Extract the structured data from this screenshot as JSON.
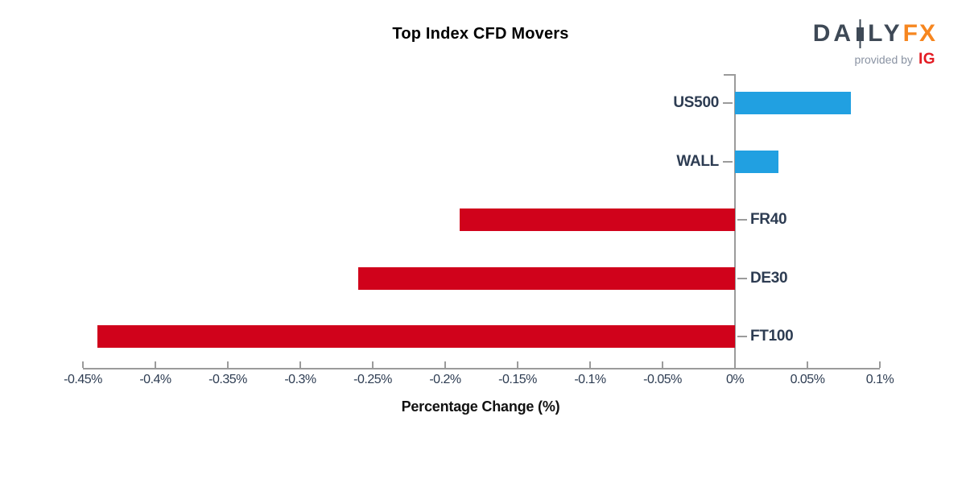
{
  "title": "Top Index CFD Movers",
  "logo": {
    "brand_daily_left": "DA",
    "brand_daily_right": "LY",
    "brand_fx": "FX",
    "provided_by": "provided by",
    "provider": "IG"
  },
  "chart_data": {
    "type": "bar",
    "orientation": "horizontal",
    "title": "Top Index CFD Movers",
    "xlabel": "Percentage Change (%)",
    "categories": [
      "US500",
      "WALL",
      "FR40",
      "DE30",
      "FT100"
    ],
    "values": [
      0.08,
      0.03,
      -0.19,
      -0.26,
      -0.44
    ],
    "unit": "%",
    "xlim": [
      -0.45,
      0.1
    ],
    "xticks": [
      -0.45,
      -0.4,
      -0.35,
      -0.3,
      -0.25,
      -0.2,
      -0.15,
      -0.1,
      -0.05,
      0,
      0.05,
      0.1
    ],
    "xtick_labels": [
      "-0.45%",
      "-0.4%",
      "-0.35%",
      "-0.3%",
      "-0.25%",
      "-0.2%",
      "-0.15%",
      "-0.1%",
      "-0.05%",
      "0%",
      "0.05%",
      "0.1%"
    ],
    "grid": false,
    "legend": false,
    "colors": {
      "positive": "#21A0E1",
      "negative": "#D0021B"
    }
  },
  "colors": {
    "bar_positive": "#21A0E1",
    "bar_negative": "#D0021B",
    "axis": "#9B9B9B",
    "label_text": "#2D3C52",
    "logo_slate": "#3E4956",
    "logo_orange": "#F6861F",
    "logo_ig_red": "#E31B23",
    "provided_by_gray": "#8A93A3"
  }
}
